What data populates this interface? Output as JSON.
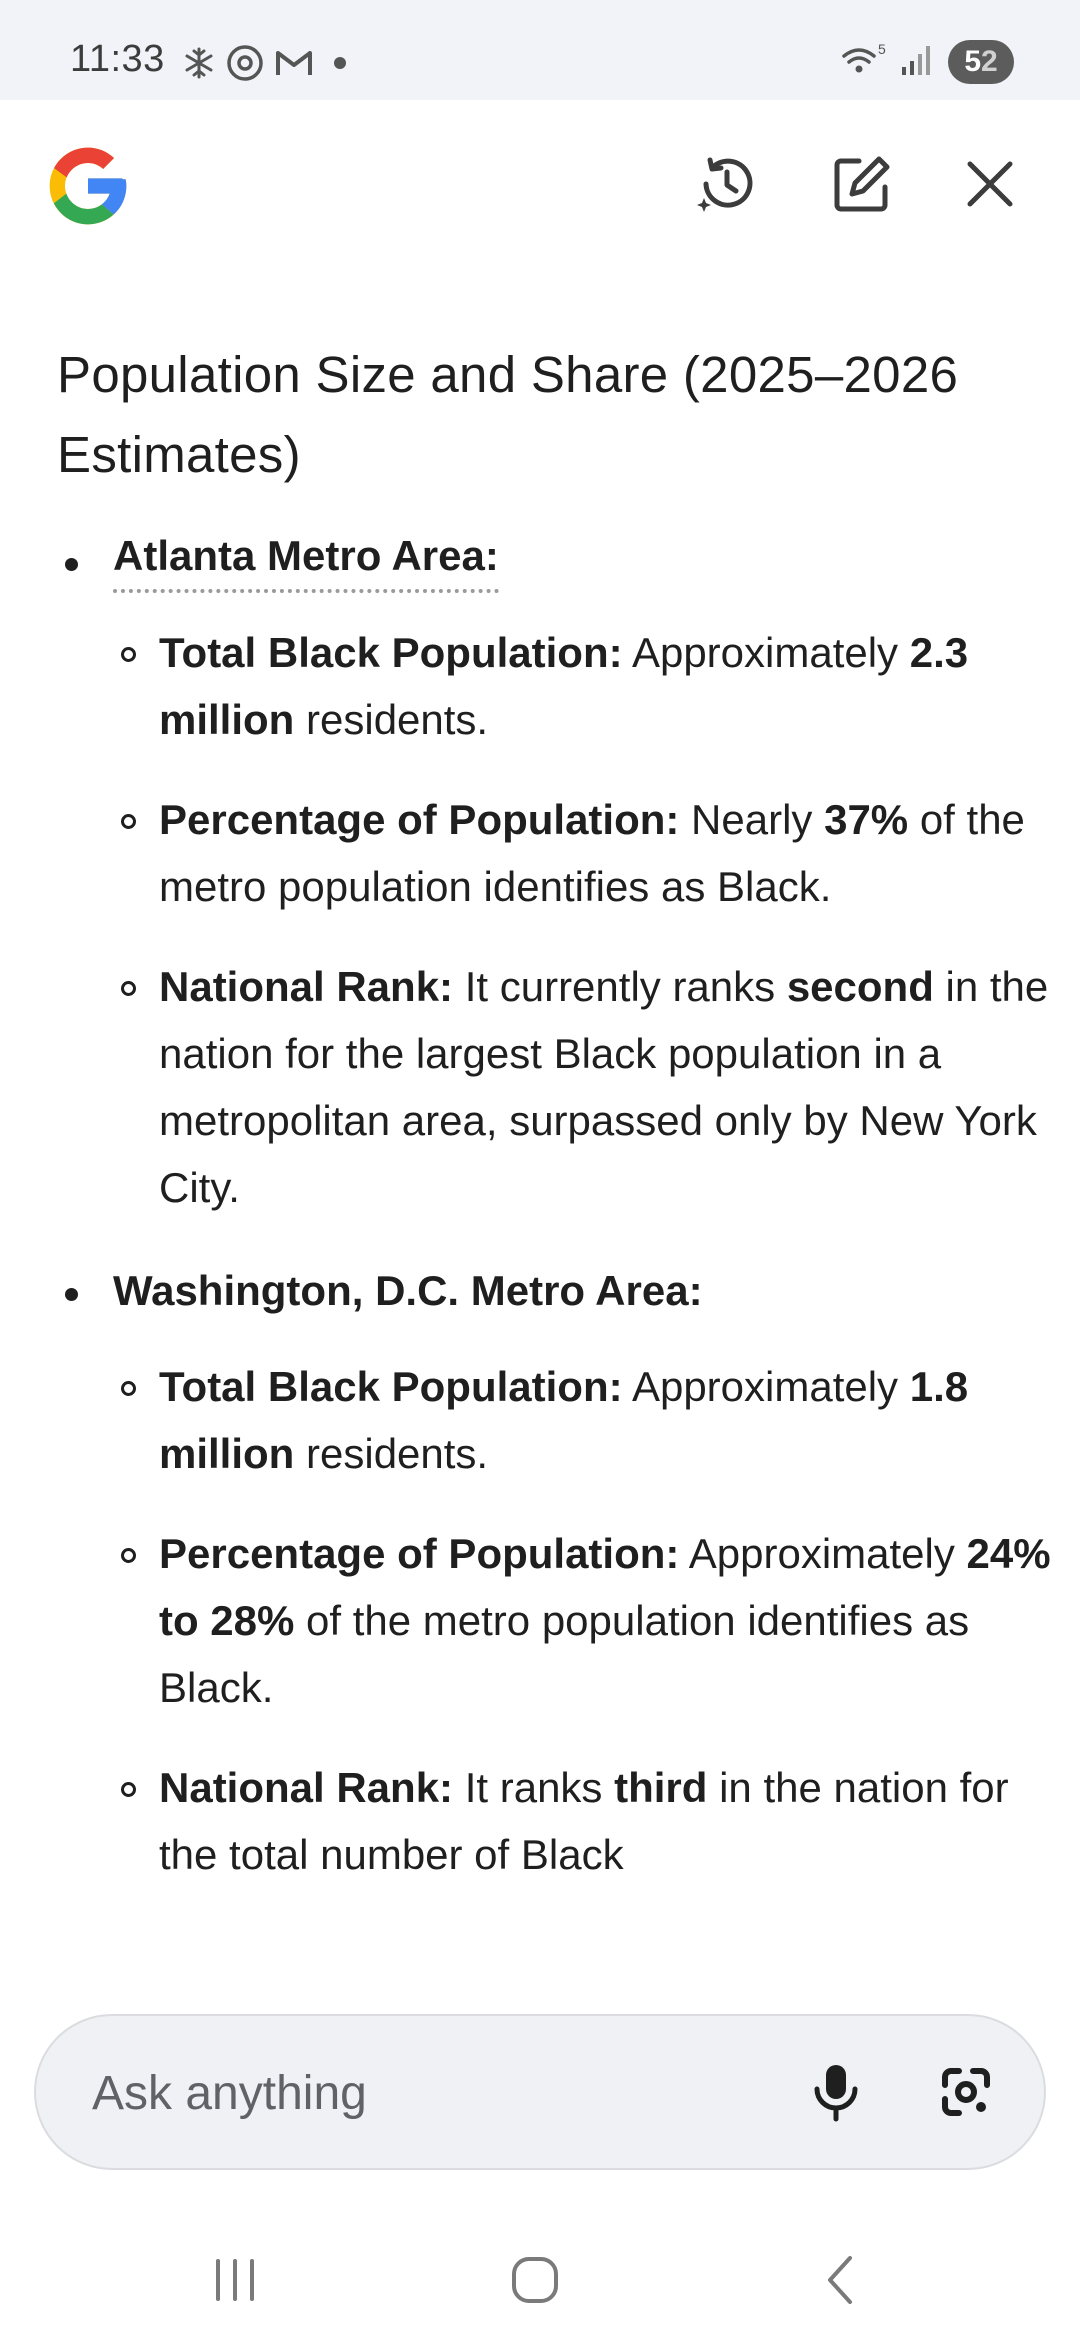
{
  "status_bar": {
    "time": "11:33",
    "icons": [
      "snowflake-icon",
      "threads-icon",
      "gmail-icon",
      "notification-dot"
    ],
    "right_icons": [
      "wifi-icon",
      "signal-icon"
    ],
    "wifi_label": "5",
    "battery_whole": "5",
    "battery_part": "2"
  },
  "header": {
    "logo": "google-g-logo",
    "history_icon": "history-icon",
    "edit_icon": "new-chat-icon",
    "close_icon": "close-icon"
  },
  "content": {
    "heading": "Population Size and Share (2025–2026 Estimates)",
    "sections": [
      {
        "title": "Atlanta Metro Area:",
        "items": [
          {
            "label": "Total Black Population:",
            "pre": " Approximately ",
            "bold": "2.3 million",
            "post": " residents."
          },
          {
            "label": "Percentage of Population:",
            "pre": " Nearly ",
            "bold": "37%",
            "post": " of the metro population identifies as Black."
          },
          {
            "label": "National Rank:",
            "pre": " It currently ranks ",
            "bold": "second",
            "post": " in the nation for the largest Black population in a metropolitan area, surpassed only by New York City."
          }
        ]
      },
      {
        "title": "Washington, D.C. Metro Area:",
        "items": [
          {
            "label": "Total Black Population:",
            "pre": " Approximately ",
            "bold": "1.8 million",
            "post": " residents."
          },
          {
            "label": "Percentage of Population:",
            "pre": " Approximately ",
            "bold": "24% to 28%",
            "post": " of the metro population identifies as Black."
          },
          {
            "label": "National Rank:",
            "pre": " It ranks ",
            "bold": "third",
            "post": " in the nation for the total number of Black"
          }
        ]
      }
    ]
  },
  "input": {
    "placeholder": "Ask anything",
    "mic_icon": "microphone-icon",
    "lens_icon": "google-lens-icon"
  },
  "nav": {
    "recents_icon": "recents-icon",
    "home_icon": "home-icon",
    "back_icon": "back-icon"
  },
  "colors": {
    "status_bar_bg": "#f2f3f8",
    "input_bg": "#f0f1f5",
    "text": "#1f1f1f",
    "google_blue": "#4285F4",
    "google_red": "#EA4335",
    "google_yellow": "#FBBC05",
    "google_green": "#34A853"
  }
}
